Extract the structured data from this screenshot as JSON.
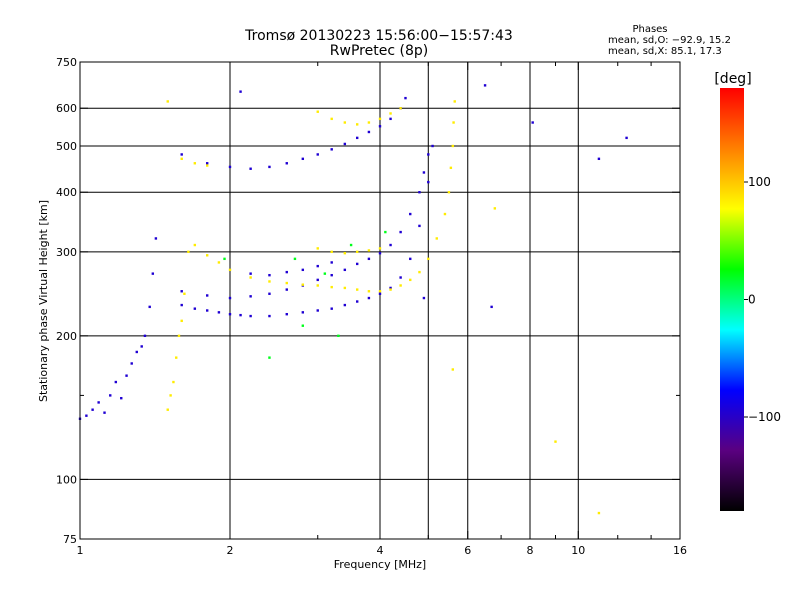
{
  "chart_data": {
    "type": "scatter",
    "title": "Tromsø 20130223 15:56:00−15:57:43",
    "subtitle": "RwPretec (8p)",
    "xlabel": "Frequency [MHz]",
    "ylabel": "Stationary phase Virtual Height [km]",
    "xscale": "log",
    "yscale": "log",
    "xlim": [
      1,
      16
    ],
    "ylim": [
      75,
      750
    ],
    "x_ticks": [
      1,
      2,
      4,
      6,
      8,
      10,
      16
    ],
    "x_tick_labels": [
      "1",
      "2",
      "4",
      "6",
      "8",
      "10",
      "16"
    ],
    "x_minor_ticks": [
      3,
      5,
      7,
      9,
      12,
      14
    ],
    "x_gridlines": [
      2,
      4,
      5,
      6,
      8,
      10
    ],
    "y_ticks": [
      75,
      100,
      200,
      300,
      400,
      500,
      600,
      750
    ],
    "y_tick_labels": [
      "75",
      "100",
      "200",
      "300",
      "400",
      "500",
      "600",
      "750"
    ],
    "y_minor_ticks": [
      150
    ],
    "y_gridlines": [
      100,
      200,
      300,
      400,
      500,
      600
    ],
    "grid": true,
    "legend": {
      "title": "Phases",
      "lines": [
        "mean, sd,O: −92.9, 15.2",
        "mean, sd,X:  85.1, 17.3"
      ],
      "placement": "top-right"
    },
    "colorbar": {
      "title": "[deg]",
      "range": [
        -180,
        180
      ],
      "tick_values": [
        -100,
        0,
        100
      ],
      "tick_labels": [
        "−100",
        "0",
        "100"
      ],
      "colormap": [
        "#000000",
        "#5a0080",
        "#0000ff",
        "#00ffff",
        "#00ff00",
        "#ffff00",
        "#ff8000",
        "#ff0000"
      ]
    },
    "series": [
      {
        "description_role": "o-mode",
        "color_phase": -95,
        "points": [
          [
            1.0,
            134
          ],
          [
            1.03,
            136
          ],
          [
            1.06,
            140
          ],
          [
            1.09,
            145
          ],
          [
            1.12,
            138
          ],
          [
            1.15,
            150
          ],
          [
            1.18,
            160
          ],
          [
            1.21,
            148
          ],
          [
            1.24,
            165
          ],
          [
            1.27,
            175
          ],
          [
            1.3,
            185
          ],
          [
            1.33,
            190
          ],
          [
            1.35,
            200
          ],
          [
            1.38,
            230
          ],
          [
            1.4,
            270
          ],
          [
            1.42,
            320
          ],
          [
            1.6,
            232
          ],
          [
            1.7,
            228
          ],
          [
            1.8,
            226
          ],
          [
            1.9,
            224
          ],
          [
            2.0,
            222
          ],
          [
            2.1,
            221
          ],
          [
            2.2,
            220
          ],
          [
            2.4,
            220
          ],
          [
            2.6,
            222
          ],
          [
            2.8,
            224
          ],
          [
            3.0,
            226
          ],
          [
            3.2,
            228
          ],
          [
            3.4,
            232
          ],
          [
            3.6,
            236
          ],
          [
            3.8,
            240
          ],
          [
            4.0,
            245
          ],
          [
            4.2,
            252
          ],
          [
            4.4,
            265
          ],
          [
            4.6,
            290
          ],
          [
            4.8,
            340
          ],
          [
            5.0,
            420
          ],
          [
            5.1,
            500
          ],
          [
            1.6,
            248
          ],
          [
            1.8,
            243
          ],
          [
            2.0,
            240
          ],
          [
            2.2,
            242
          ],
          [
            2.4,
            245
          ],
          [
            2.6,
            250
          ],
          [
            2.8,
            255
          ],
          [
            3.0,
            262
          ],
          [
            3.2,
            268
          ],
          [
            3.4,
            275
          ],
          [
            3.6,
            283
          ],
          [
            3.8,
            290
          ],
          [
            4.0,
            298
          ],
          [
            4.2,
            310
          ],
          [
            4.4,
            330
          ],
          [
            4.6,
            360
          ],
          [
            4.8,
            400
          ],
          [
            4.9,
            440
          ],
          [
            5.0,
            480
          ],
          [
            1.6,
            480
          ],
          [
            1.8,
            460
          ],
          [
            2.0,
            452
          ],
          [
            2.2,
            448
          ],
          [
            2.4,
            452
          ],
          [
            2.6,
            460
          ],
          [
            2.8,
            470
          ],
          [
            3.0,
            480
          ],
          [
            3.2,
            492
          ],
          [
            3.4,
            505
          ],
          [
            3.6,
            520
          ],
          [
            3.8,
            535
          ],
          [
            4.0,
            550
          ],
          [
            4.2,
            570
          ],
          [
            4.4,
            600
          ],
          [
            4.5,
            630
          ],
          [
            2.2,
            270
          ],
          [
            2.4,
            268
          ],
          [
            2.6,
            272
          ],
          [
            2.8,
            275
          ],
          [
            3.0,
            280
          ],
          [
            3.2,
            285
          ],
          [
            2.1,
            650
          ],
          [
            6.5,
            670
          ],
          [
            11.0,
            470
          ],
          [
            8.1,
            560
          ],
          [
            12.5,
            520
          ],
          [
            6.7,
            230
          ],
          [
            4.9,
            240
          ]
        ]
      },
      {
        "description_role": "x-mode",
        "color_phase": 85,
        "points": [
          [
            1.5,
            140
          ],
          [
            1.52,
            150
          ],
          [
            1.54,
            160
          ],
          [
            1.56,
            180
          ],
          [
            1.58,
            200
          ],
          [
            1.6,
            215
          ],
          [
            1.62,
            245
          ],
          [
            1.65,
            300
          ],
          [
            1.7,
            310
          ],
          [
            1.8,
            295
          ],
          [
            1.9,
            285
          ],
          [
            2.0,
            275
          ],
          [
            2.2,
            265
          ],
          [
            2.4,
            260
          ],
          [
            2.6,
            258
          ],
          [
            2.8,
            256
          ],
          [
            3.0,
            255
          ],
          [
            3.2,
            253
          ],
          [
            3.4,
            252
          ],
          [
            3.6,
            250
          ],
          [
            3.8,
            248
          ],
          [
            4.0,
            248
          ],
          [
            4.2,
            250
          ],
          [
            4.4,
            255
          ],
          [
            4.6,
            262
          ],
          [
            4.8,
            272
          ],
          [
            5.0,
            290
          ],
          [
            5.2,
            320
          ],
          [
            5.4,
            360
          ],
          [
            5.5,
            400
          ],
          [
            5.55,
            450
          ],
          [
            5.6,
            500
          ],
          [
            5.62,
            560
          ],
          [
            5.65,
            620
          ],
          [
            3.0,
            305
          ],
          [
            3.2,
            300
          ],
          [
            3.4,
            298
          ],
          [
            3.6,
            300
          ],
          [
            3.8,
            302
          ],
          [
            4.0,
            305
          ],
          [
            3.0,
            590
          ],
          [
            3.2,
            570
          ],
          [
            3.4,
            560
          ],
          [
            3.6,
            555
          ],
          [
            3.8,
            560
          ],
          [
            4.0,
            570
          ],
          [
            4.2,
            585
          ],
          [
            4.4,
            600
          ],
          [
            1.6,
            470
          ],
          [
            1.7,
            460
          ],
          [
            1.8,
            455
          ],
          [
            1.5,
            620
          ],
          [
            9.0,
            120
          ],
          [
            11.0,
            85
          ],
          [
            6.8,
            370
          ],
          [
            5.6,
            170
          ]
        ]
      },
      {
        "description_role": "mixed",
        "color_phase": 20,
        "points": [
          [
            2.7,
            290
          ],
          [
            3.1,
            270
          ],
          [
            3.5,
            310
          ],
          [
            4.1,
            330
          ],
          [
            2.4,
            180
          ],
          [
            3.3,
            200
          ],
          [
            2.8,
            210
          ],
          [
            1.95,
            290
          ]
        ]
      }
    ]
  }
}
